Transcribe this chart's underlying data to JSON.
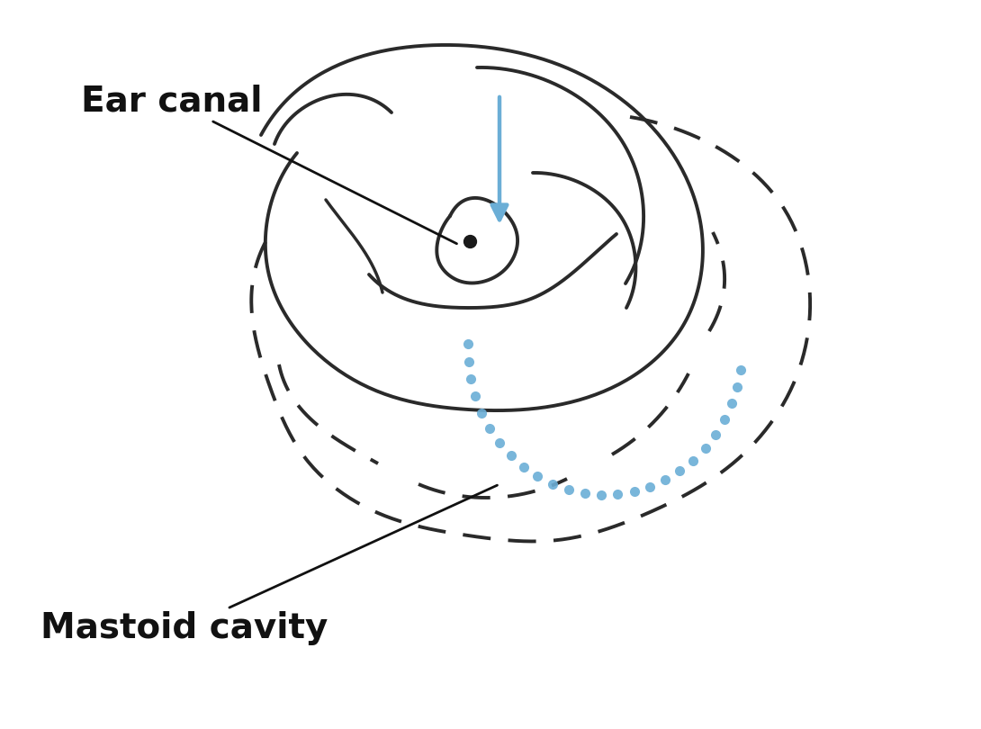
{
  "bg_color": "#ffffff",
  "line_color": "#2a2a2a",
  "blue_color": "#6baed6",
  "arrow_color": "#6baed6",
  "label_ear_canal": "Ear canal",
  "label_mastoid": "Mastoid cavity",
  "label_fontsize": 28,
  "label_fontweight": "bold",
  "figsize": [
    10.9,
    8.1
  ],
  "dpi": 100
}
